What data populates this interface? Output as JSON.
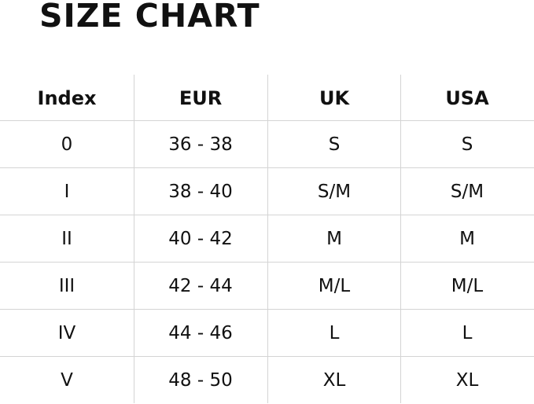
{
  "title": "SIZE CHART",
  "headers": [
    "Index",
    "EUR",
    "UK",
    "USA"
  ],
  "rows": [
    [
      "0",
      "36 - 38",
      "S",
      "S"
    ],
    [
      "I",
      "38 - 40",
      "S/M",
      "S/M"
    ],
    [
      "II",
      "40 - 42",
      "M",
      "M"
    ],
    [
      "III",
      "42 - 44",
      "M/L",
      "M/L"
    ],
    [
      "IV",
      "44 - 46",
      "L",
      "L"
    ],
    [
      "V",
      "48 - 50",
      "XL",
      "XL"
    ]
  ]
}
